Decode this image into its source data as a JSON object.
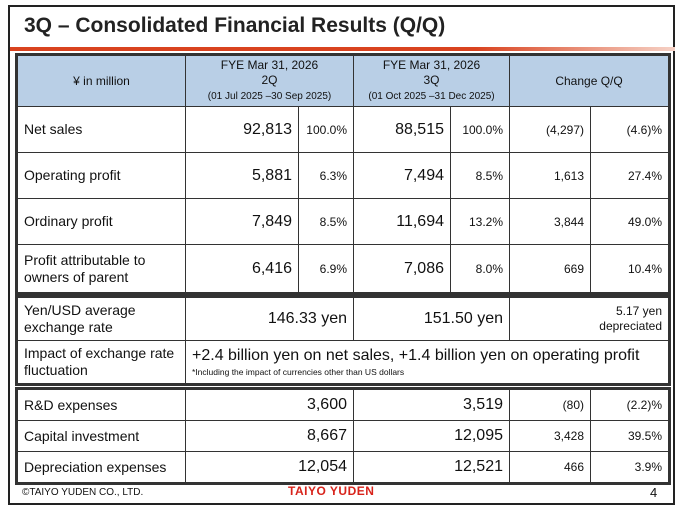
{
  "title": "3Q – Consolidated Financial Results (Q/Q)",
  "header": {
    "unit": "¥ in million",
    "col1": {
      "fy": "FYE Mar 31, 2026",
      "q": "2Q",
      "period": "(01 Jul 2025 –30 Sep 2025)"
    },
    "col2": {
      "fy": "FYE Mar 31, 2026",
      "q": "3Q",
      "period": "(01 Oct 2025 –31 Dec 2025)"
    },
    "change": "Change Q/Q"
  },
  "rows": [
    {
      "label": "Net sales",
      "v1": "92,813",
      "p1": "100.0%",
      "v2": "88,515",
      "p2": "100.0%",
      "c1": "(4,297)",
      "c2": "(4.6)%"
    },
    {
      "label": "Operating profit",
      "v1": "5,881",
      "p1": "6.3%",
      "v2": "7,494",
      "p2": "8.5%",
      "c1": "1,613",
      "c2": "27.4%"
    },
    {
      "label": "Ordinary profit",
      "v1": "7,849",
      "p1": "8.5%",
      "v2": "11,694",
      "p2": "13.2%",
      "c1": "3,844",
      "c2": "49.0%"
    },
    {
      "label": "Profit attributable to owners of parent",
      "v1": "6,416",
      "p1": "6.9%",
      "v2": "7,086",
      "p2": "8.0%",
      "c1": "669",
      "c2": "10.4%"
    }
  ],
  "fx": {
    "label": "Yen/USD average exchange rate",
    "v1": "146.33 yen",
    "v2": "151.50 yen",
    "change": "5.17 yen depreciated",
    "impact_label": "Impact of exchange rate fluctuation",
    "impact": "+2.4 billion yen on net sales, +1.4 billion yen on operating profit",
    "note": "*Including the impact of currencies other than US dollars"
  },
  "other": [
    {
      "label": "R&D expenses",
      "v1": "3,600",
      "v2": "3,519",
      "c1": "(80)",
      "c2": "(2.2)%"
    },
    {
      "label": "Capital investment",
      "v1": "8,667",
      "v2": "12,095",
      "c1": "3,428",
      "c2": "39.5%"
    },
    {
      "label": "Depreciation expenses",
      "v1": "12,054",
      "v2": "12,521",
      "c1": "466",
      "c2": "3.9%"
    }
  ],
  "footer": {
    "copyright": "©TAIYO YUDEN CO., LTD.",
    "logo": "TAIYO YUDEN",
    "page": "4"
  }
}
